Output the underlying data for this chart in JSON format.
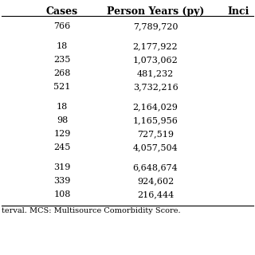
{
  "headers": [
    "Cases",
    "Person Years (py)",
    "Inci"
  ],
  "data_rows_flat": [
    [
      "766",
      "7,789,720"
    ],
    [
      "18",
      "2,177,922"
    ],
    [
      "235",
      "1,073,062"
    ],
    [
      "268",
      "481,232"
    ],
    [
      "521",
      "3,732,216"
    ],
    [
      "18",
      "2,164,029"
    ],
    [
      "98",
      "1,165,956"
    ],
    [
      "129",
      "727,519"
    ],
    [
      "245",
      "4,057,504"
    ],
    [
      "319",
      "6,648,674"
    ],
    [
      "339",
      "924,602"
    ],
    [
      "108",
      "216,444"
    ]
  ],
  "footer": "terval. MCS: Multisource Comorbidity Score.",
  "bg_color": "#ffffff",
  "text_color": "#000000",
  "font_size": 8.0,
  "header_font_size": 9.0,
  "footer_font_size": 7.0
}
